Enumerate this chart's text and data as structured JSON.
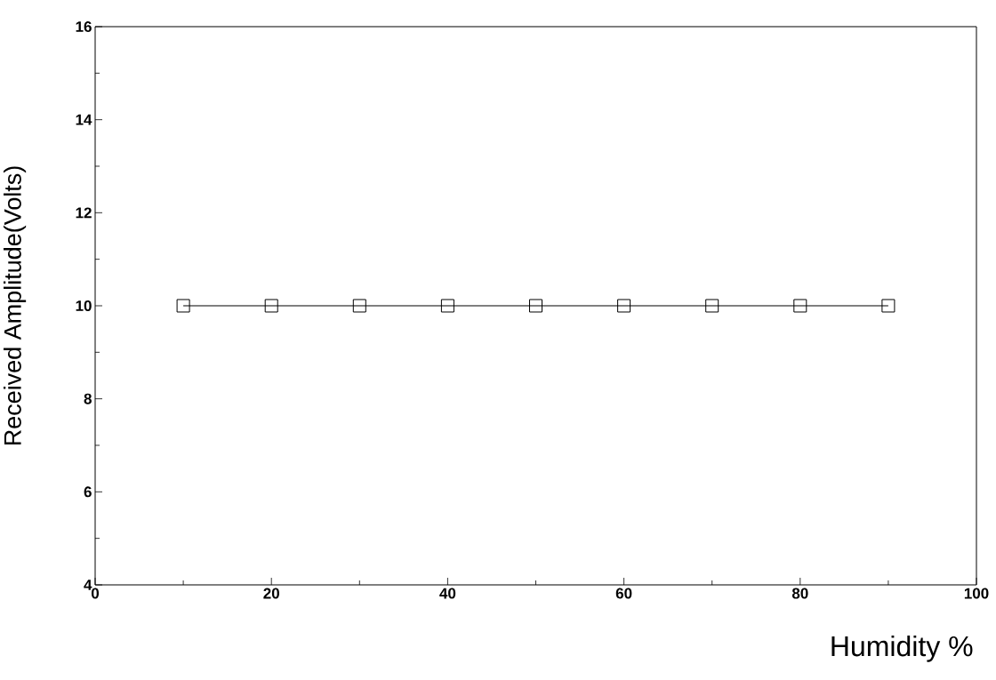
{
  "chart_data": {
    "type": "line",
    "xlabel": "Humidity %",
    "ylabel": "Received Amplitude(Volts)",
    "x": [
      10,
      20,
      30,
      40,
      50,
      60,
      70,
      80,
      90
    ],
    "values": [
      10,
      10,
      10,
      10,
      10,
      10,
      10,
      10,
      10
    ],
    "color": "#000000",
    "marker": "square",
    "line_style": "solid",
    "xlim": [
      0,
      100
    ],
    "ylim": [
      4,
      16
    ],
    "xticks": [
      0,
      20,
      40,
      60,
      80,
      100
    ],
    "yticks": [
      4,
      6,
      8,
      10,
      12,
      14,
      16
    ],
    "grid": false
  }
}
